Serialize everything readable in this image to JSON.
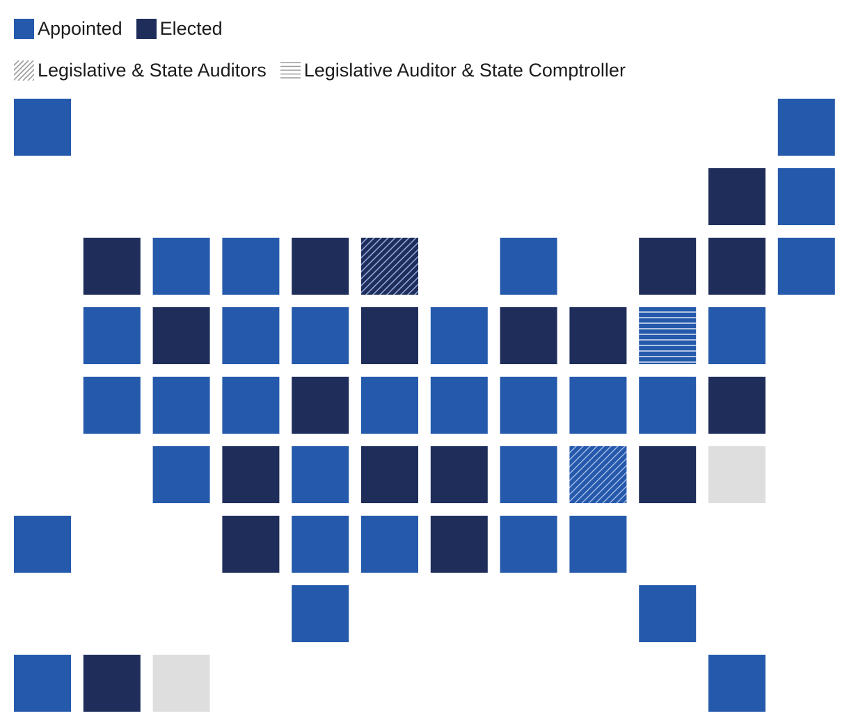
{
  "legend": {
    "appointed_label": "Appointed",
    "elected_label": "Elected",
    "legislative_state_auditors_label": "Legislative & State Auditors",
    "legislative_auditor_comptroller_label": "Legislative Auditor & State Comptroller"
  },
  "colors": {
    "appointed": "#2459ab",
    "elected": "#1f2d5a",
    "none": "#dedede",
    "hatch_line": "#8ea6dc",
    "stripe_line": "#ffffff",
    "legend_pattern_line": "#9a9a9a"
  },
  "map": {
    "tiles": [
      {
        "row": 0,
        "col": 0,
        "status": "appointed"
      },
      {
        "row": 0,
        "col": 11,
        "status": "appointed"
      },
      {
        "row": 1,
        "col": 10,
        "status": "elected"
      },
      {
        "row": 1,
        "col": 11,
        "status": "appointed"
      },
      {
        "row": 2,
        "col": 1,
        "status": "elected"
      },
      {
        "row": 2,
        "col": 2,
        "status": "appointed"
      },
      {
        "row": 2,
        "col": 3,
        "status": "appointed"
      },
      {
        "row": 2,
        "col": 4,
        "status": "elected"
      },
      {
        "row": 2,
        "col": 5,
        "status": "legislative-state-auditors"
      },
      {
        "row": 2,
        "col": 7,
        "status": "appointed"
      },
      {
        "row": 2,
        "col": 9,
        "status": "elected"
      },
      {
        "row": 2,
        "col": 10,
        "status": "elected"
      },
      {
        "row": 2,
        "col": 11,
        "status": "appointed"
      },
      {
        "row": 3,
        "col": 1,
        "status": "appointed"
      },
      {
        "row": 3,
        "col": 2,
        "status": "elected"
      },
      {
        "row": 3,
        "col": 3,
        "status": "appointed"
      },
      {
        "row": 3,
        "col": 4,
        "status": "appointed"
      },
      {
        "row": 3,
        "col": 5,
        "status": "elected"
      },
      {
        "row": 3,
        "col": 6,
        "status": "appointed"
      },
      {
        "row": 3,
        "col": 7,
        "status": "elected"
      },
      {
        "row": 3,
        "col": 8,
        "status": "elected"
      },
      {
        "row": 3,
        "col": 9,
        "status": "legislative-auditor-comptroller"
      },
      {
        "row": 3,
        "col": 10,
        "status": "appointed"
      },
      {
        "row": 4,
        "col": 1,
        "status": "appointed"
      },
      {
        "row": 4,
        "col": 2,
        "status": "appointed"
      },
      {
        "row": 4,
        "col": 3,
        "status": "appointed"
      },
      {
        "row": 4,
        "col": 4,
        "status": "elected"
      },
      {
        "row": 4,
        "col": 5,
        "status": "appointed"
      },
      {
        "row": 4,
        "col": 6,
        "status": "appointed"
      },
      {
        "row": 4,
        "col": 7,
        "status": "appointed"
      },
      {
        "row": 4,
        "col": 8,
        "status": "appointed"
      },
      {
        "row": 4,
        "col": 9,
        "status": "appointed"
      },
      {
        "row": 4,
        "col": 10,
        "status": "elected"
      },
      {
        "row": 5,
        "col": 2,
        "status": "appointed"
      },
      {
        "row": 5,
        "col": 3,
        "status": "elected"
      },
      {
        "row": 5,
        "col": 4,
        "status": "appointed"
      },
      {
        "row": 5,
        "col": 5,
        "status": "elected"
      },
      {
        "row": 5,
        "col": 6,
        "status": "elected"
      },
      {
        "row": 5,
        "col": 7,
        "status": "appointed"
      },
      {
        "row": 5,
        "col": 8,
        "status": "legislative-state-auditors"
      },
      {
        "row": 5,
        "col": 9,
        "status": "elected"
      },
      {
        "row": 5,
        "col": 10,
        "status": "none"
      },
      {
        "row": 6,
        "col": 0,
        "status": "appointed"
      },
      {
        "row": 6,
        "col": 3,
        "status": "elected"
      },
      {
        "row": 6,
        "col": 4,
        "status": "appointed"
      },
      {
        "row": 6,
        "col": 5,
        "status": "appointed"
      },
      {
        "row": 6,
        "col": 6,
        "status": "elected"
      },
      {
        "row": 6,
        "col": 7,
        "status": "appointed"
      },
      {
        "row": 6,
        "col": 8,
        "status": "appointed"
      },
      {
        "row": 7,
        "col": 4,
        "status": "appointed"
      },
      {
        "row": 7,
        "col": 9,
        "status": "appointed"
      },
      {
        "row": 8,
        "col": 0,
        "status": "appointed"
      },
      {
        "row": 8,
        "col": 1,
        "status": "elected"
      },
      {
        "row": 8,
        "col": 2,
        "status": "none"
      },
      {
        "row": 8,
        "col": 10,
        "status": "appointed"
      }
    ]
  }
}
